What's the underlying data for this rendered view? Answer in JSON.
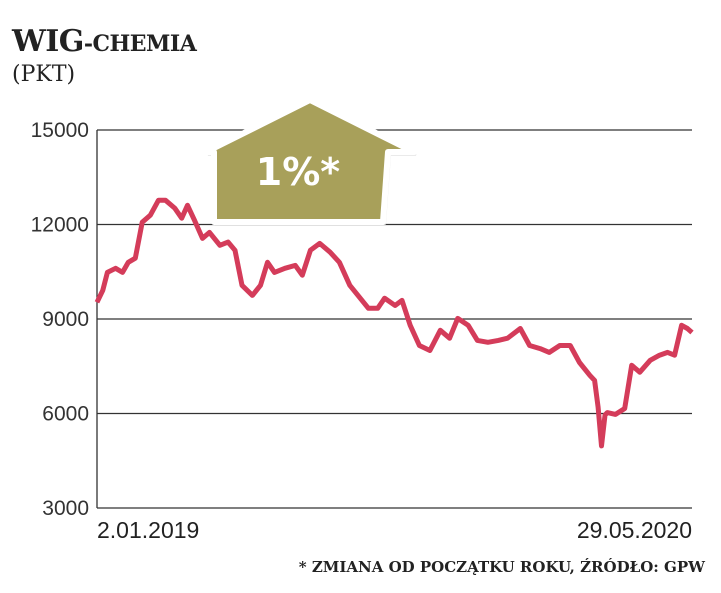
{
  "title_main": "WIG",
  "title_rest": "-CHEMIA",
  "unit": "(PKT)",
  "badge": {
    "text": "1%*",
    "color": "#a8a05a"
  },
  "footnote": "* ZMIANA OD POCZĄTKU ROKU, ŹRÓDŁO: GPW",
  "colors": {
    "line": "#d43c5a",
    "grid": "#333333"
  },
  "chart_data": {
    "type": "line",
    "title": "WIG-CHEMIA (PKT)",
    "xlabel": "",
    "ylabel": "PKT",
    "x_tick_labels": [
      "2.01.2019",
      "29.05.2020"
    ],
    "x_unit": "days since 2.01.2019",
    "xlim": [
      0,
      513
    ],
    "ylim": [
      3000,
      15000
    ],
    "y_ticks": [
      3000,
      6000,
      9000,
      12000,
      15000
    ],
    "grid": true,
    "series": [
      {
        "name": "WIG-CHEMIA",
        "x": [
          0,
          5,
          9,
          16,
          22,
          27,
          33,
          39,
          46,
          53,
          59,
          67,
          73,
          78,
          84,
          91,
          97,
          106,
          113,
          119,
          125,
          134,
          141,
          147,
          153,
          162,
          171,
          177,
          184,
          192,
          201,
          209,
          218,
          225,
          234,
          242,
          248,
          257,
          263,
          270,
          278,
          287,
          296,
          304,
          311,
          320,
          328,
          337,
          346,
          354,
          365,
          373,
          382,
          390,
          399,
          408,
          416,
          425,
          429,
          432,
          435,
          438,
          440,
          447,
          455,
          461,
          468,
          477,
          485,
          492,
          498,
          504,
          509,
          513
        ],
        "values": [
          9530,
          9910,
          10480,
          10610,
          10480,
          10800,
          10930,
          12070,
          12300,
          12770,
          12770,
          12520,
          12200,
          12610,
          12140,
          11560,
          11750,
          11340,
          11440,
          11180,
          10070,
          9750,
          10070,
          10800,
          10480,
          10610,
          10700,
          10390,
          11180,
          11400,
          11120,
          10800,
          10070,
          9750,
          9340,
          9340,
          9660,
          9430,
          9590,
          8800,
          8160,
          8000,
          8640,
          8390,
          9020,
          8800,
          8320,
          8260,
          8320,
          8390,
          8700,
          8160,
          8060,
          7940,
          8160,
          8160,
          7620,
          7210,
          7050,
          6200,
          4970,
          5950,
          6030,
          5970,
          6160,
          7530,
          7310,
          7690,
          7850,
          7940,
          7850,
          8800,
          8700,
          8570
        ]
      }
    ]
  }
}
